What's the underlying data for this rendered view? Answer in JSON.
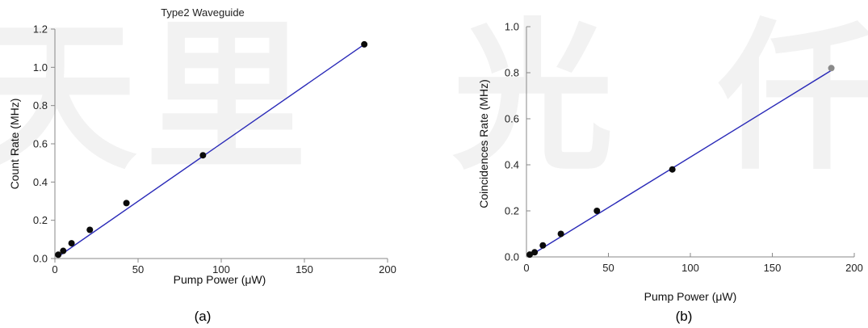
{
  "colors": {
    "fit_line": "#2a2ab8",
    "point": "#0a0a0a",
    "last_point_b": "#8a8a8a",
    "axis": "#888888",
    "watermark": "#f2f2f2"
  },
  "watermark": {
    "glyphs": [
      "天",
      "里",
      "光",
      "仟"
    ]
  },
  "chart_data": [
    {
      "type": "scatter",
      "title": "Type2 Waveguide",
      "xlabel": "Pump Power (μW)",
      "ylabel": "Count Rate (MHz)",
      "caption": "(a)",
      "xlim": [
        0,
        200
      ],
      "ylim": [
        0,
        1.2
      ],
      "x_ticks": [
        0,
        50,
        100,
        150,
        200
      ],
      "y_ticks": [
        0.0,
        0.2,
        0.4,
        0.6,
        0.8,
        1.0,
        1.2
      ],
      "y_tick_labels": [
        "0.0",
        "0.2",
        "0.4",
        "0.6",
        "0.8",
        "1.0",
        "1.2"
      ],
      "grid": false,
      "series": [
        {
          "points": [
            {
              "x": 2,
              "y": 0.02
            },
            {
              "x": 5,
              "y": 0.04
            },
            {
              "x": 10,
              "y": 0.08
            },
            {
              "x": 21,
              "y": 0.15
            },
            {
              "x": 43,
              "y": 0.29
            },
            {
              "x": 89,
              "y": 0.54
            },
            {
              "x": 186,
              "y": 1.12
            }
          ]
        }
      ],
      "fit_line": {
        "x": [
          2,
          186
        ],
        "y": [
          0.01,
          1.12
        ]
      }
    },
    {
      "type": "scatter",
      "title": "",
      "xlabel": "Pump Power (μW)",
      "ylabel": "Coincidences Rate (MHz)",
      "caption": "(b)",
      "xlim": [
        0,
        200
      ],
      "ylim": [
        0,
        1.0
      ],
      "x_ticks": [
        0,
        50,
        100,
        150,
        200
      ],
      "y_ticks": [
        0.0,
        0.2,
        0.4,
        0.6,
        0.8,
        1.0
      ],
      "y_tick_labels": [
        "0.0",
        "0.2",
        "0.4",
        "0.6",
        "0.8",
        "1.0"
      ],
      "grid": false,
      "series": [
        {
          "points": [
            {
              "x": 2,
              "y": 0.01
            },
            {
              "x": 5,
              "y": 0.02
            },
            {
              "x": 10,
              "y": 0.05
            },
            {
              "x": 21,
              "y": 0.1
            },
            {
              "x": 43,
              "y": 0.2
            },
            {
              "x": 89,
              "y": 0.38
            },
            {
              "x": 186,
              "y": 0.82
            }
          ]
        }
      ],
      "fit_line": {
        "x": [
          1,
          186
        ],
        "y": [
          0.0,
          0.81
        ]
      }
    }
  ]
}
